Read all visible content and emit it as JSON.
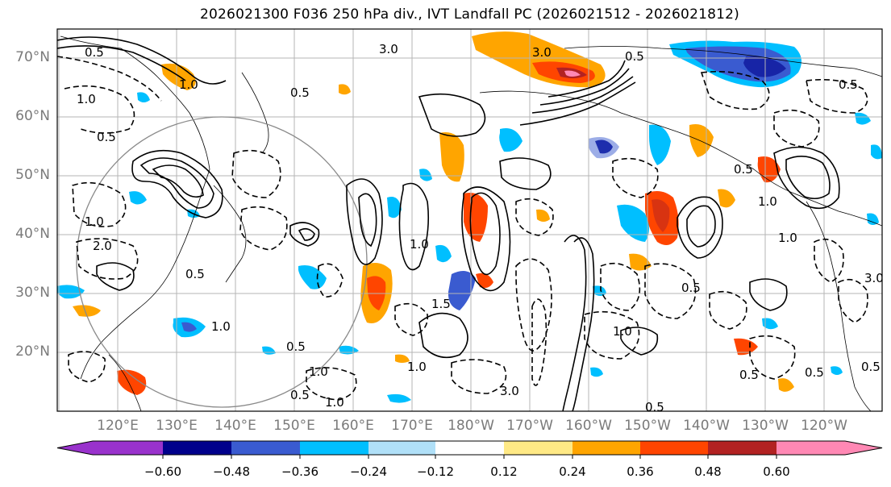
{
  "title": "2026021300 F036 250 hPa div., IVT Landfall PC (2026021512 - 2026021812)",
  "lat_labels": [
    "70°N",
    "60°N",
    "50°N",
    "40°N",
    "30°N",
    "20°N"
  ],
  "lon_labels": [
    "120°E",
    "130°E",
    "140°E",
    "150°E",
    "160°E",
    "170°E",
    "180°W",
    "170°W",
    "160°W",
    "150°W",
    "140°W",
    "130°W",
    "120°W"
  ],
  "colorbar": {
    "colors": [
      "#9932cc",
      "#00008b",
      "#3a5bd0",
      "#00bfff",
      "#b0e0f8",
      "#ffffff",
      "#ffe985",
      "#ffa500",
      "#ff4500",
      "#b22222",
      "#ff88b4"
    ],
    "ticks": [
      "−0.60",
      "−0.48",
      "−0.36",
      "−0.24",
      "−0.12",
      "0.12",
      "0.24",
      "0.36",
      "0.48",
      "0.60"
    ]
  },
  "contour_labels": [
    "3.0",
    "0.5",
    "1.0",
    "0.5",
    "1.0",
    "1.0",
    "0.5",
    "3.0",
    "1.0",
    "0.5",
    "1.0",
    "0.5",
    "1.5",
    "2.0",
    "0.5",
    "1.0",
    "0.5",
    "1.0",
    "0.5",
    "0.5",
    "3.0",
    "0.5",
    "1.0",
    "0.5",
    "1.0",
    "1.0",
    "0.5",
    "3.0",
    "1.0",
    "0.5",
    "0.5"
  ]
}
